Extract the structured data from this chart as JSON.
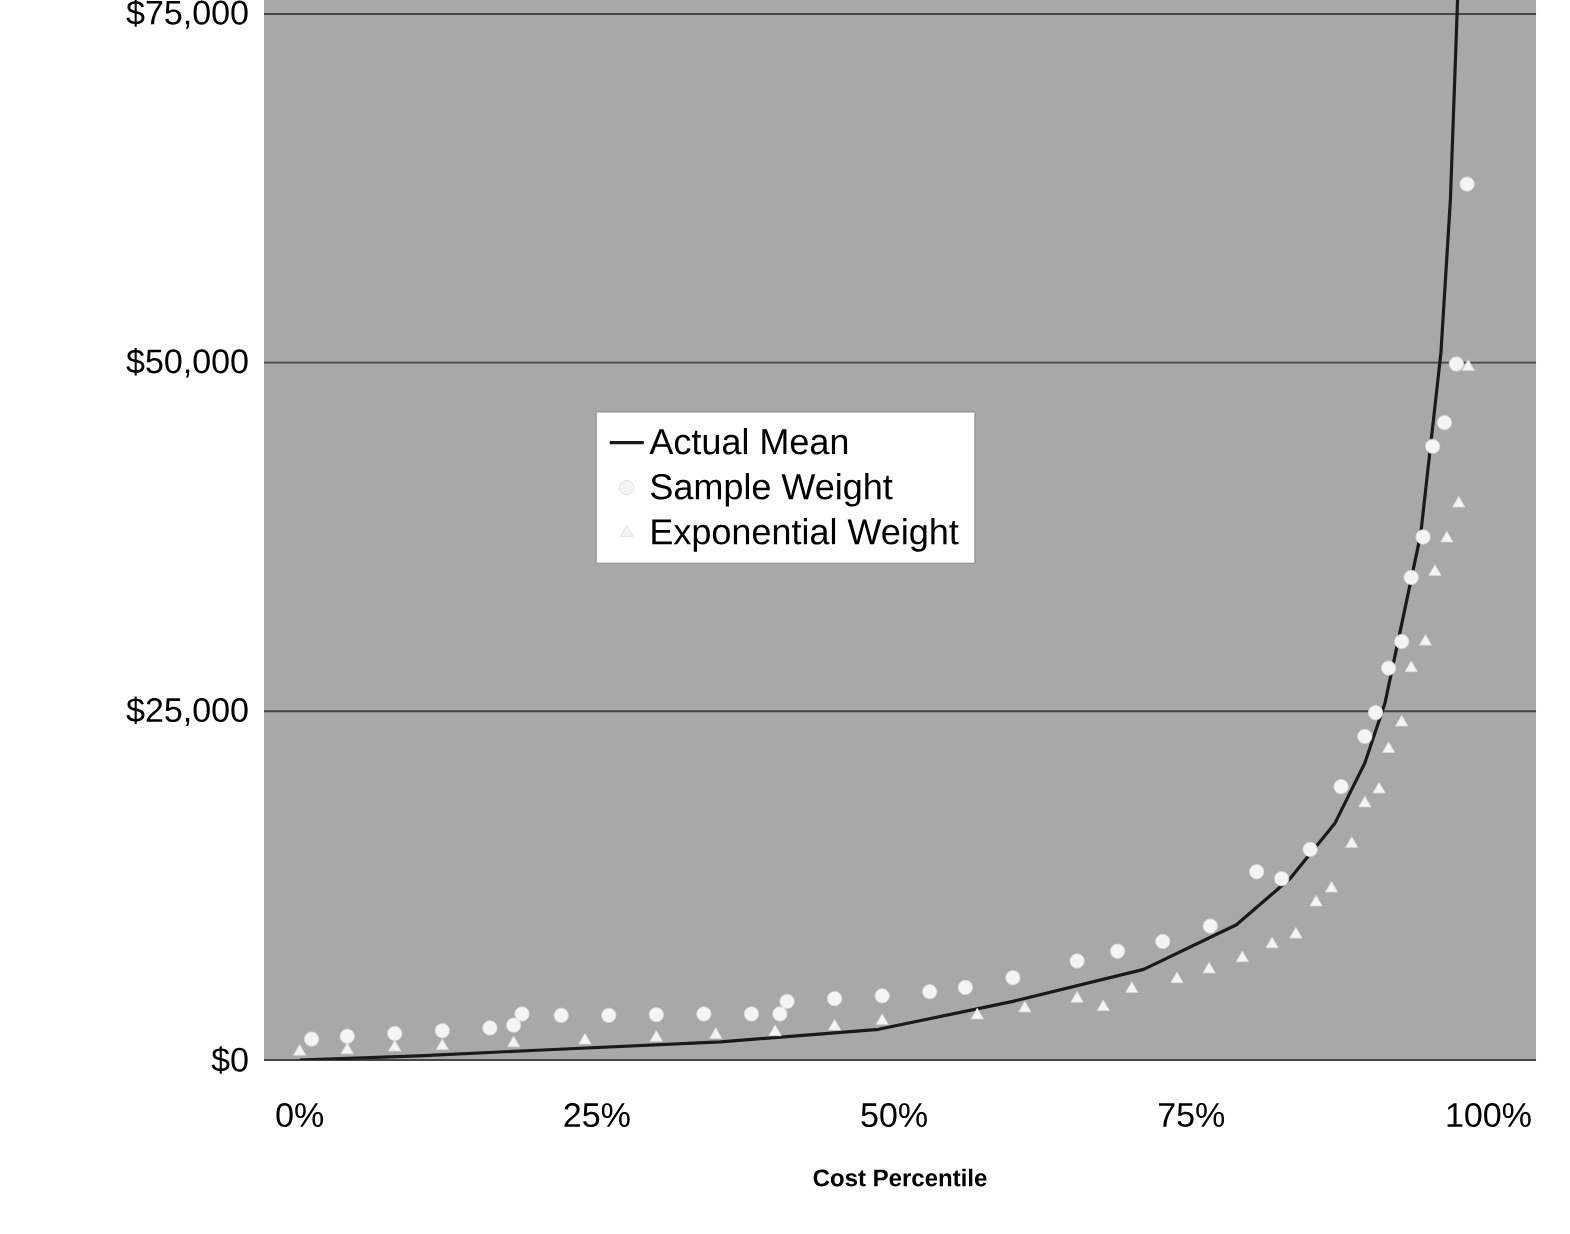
{
  "chart_data": {
    "type": "line",
    "xlabel": "Cost Percentile",
    "xlim": [
      -3,
      104
    ],
    "ylim": [
      0,
      76000
    ],
    "xticks": [
      {
        "value": 0,
        "label": "0%"
      },
      {
        "value": 25,
        "label": "25%"
      },
      {
        "value": 50,
        "label": "50%"
      },
      {
        "value": 75,
        "label": "75%"
      },
      {
        "value": 100,
        "label": "100%"
      }
    ],
    "yticks": [
      {
        "value": 0,
        "label": "$0"
      },
      {
        "value": 25000,
        "label": "$25,000"
      },
      {
        "value": 50000,
        "label": "$50,000"
      },
      {
        "value": 75000,
        "label": "$75,000"
      }
    ],
    "grid": "y",
    "legend": "center",
    "series": [
      {
        "name": "Actual Mean",
        "color": "#1a1a1a",
        "x": [
          0,
          10,
          20,
          35.4,
          48.7,
          60,
          71,
          78.8,
          83.3,
          87.1,
          89.6,
          91.3,
          94.3,
          96,
          96.8,
          97.4
        ],
        "values": [
          0,
          300,
          700,
          1300,
          2200,
          4200,
          6500,
          9700,
          13000,
          17000,
          21300,
          25600,
          37700,
          50700,
          61700,
          76000
        ]
      },
      {
        "name": "Sample Weight",
        "type": "scatter",
        "marker": "circle",
        "color": "#f4f4f4",
        "x": [
          1,
          4,
          8,
          12,
          16,
          18,
          18.7,
          22,
          26,
          30,
          34,
          38,
          40.4,
          41,
          45,
          49,
          53,
          56,
          60,
          65.4,
          68.8,
          72.6,
          76.6,
          80.5,
          82.6,
          85,
          87.6,
          89.6,
          90.5,
          91.6,
          92.7,
          93.5,
          94.5,
          95.3,
          96.3,
          97.3,
          98.2
        ],
        "values": [
          1500,
          1700,
          1900,
          2100,
          2300,
          2500,
          3300,
          3200,
          3200,
          3250,
          3300,
          3300,
          3300,
          4200,
          4400,
          4600,
          4900,
          5200,
          5900,
          7100,
          7800,
          8500,
          9600,
          13500,
          13000,
          15100,
          19600,
          23200,
          24900,
          28100,
          30000,
          34600,
          37500,
          44000,
          45700,
          49900,
          62800
        ]
      },
      {
        "name": "Exponential Weight",
        "type": "scatter",
        "marker": "triangle",
        "color": "#f4f4f4",
        "x": [
          0,
          4,
          8,
          12,
          18,
          24,
          30,
          35,
          40,
          45,
          49,
          57,
          61,
          65.4,
          67.6,
          70,
          73.8,
          76.5,
          79.3,
          81.8,
          83.8,
          85.5,
          86.8,
          88.5,
          89.6,
          90.8,
          91.6,
          92.7,
          93.5,
          94.7,
          95.5,
          96.5,
          97.5,
          98.3
        ],
        "values": [
          600,
          700,
          900,
          1000,
          1200,
          1400,
          1600,
          1800,
          2000,
          2400,
          2800,
          3200,
          3700,
          4400,
          3800,
          5100,
          5800,
          6500,
          7300,
          8300,
          9000,
          11300,
          12300,
          15500,
          18400,
          19400,
          22300,
          24200,
          28100,
          30000,
          35000,
          37400,
          39900,
          49700
        ]
      }
    ]
  }
}
